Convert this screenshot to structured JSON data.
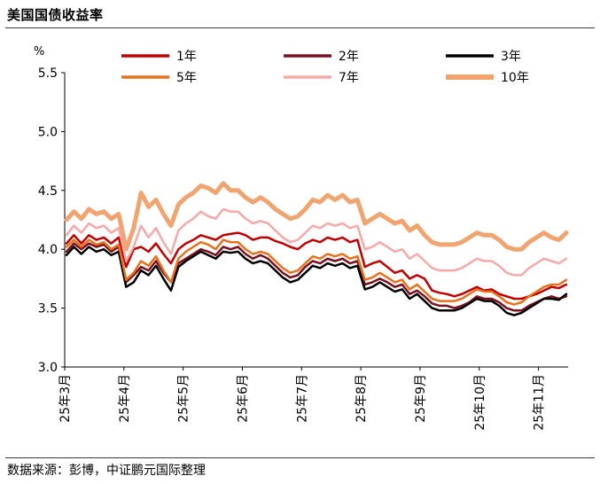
{
  "header": {
    "title": "美国国债收益率"
  },
  "footer": {
    "source": "数据来源：彭博，中证鹏元国际整理"
  },
  "chart_data": {
    "type": "line",
    "title": "美国国债收益率",
    "ylabel": "%",
    "xlabel": "",
    "ylim": [
      3.0,
      5.5
    ],
    "yticks": [
      "3.0",
      "3.5",
      "4.0",
      "4.5",
      "5.0",
      "5.5"
    ],
    "x_tick_labels": [
      "25年3月",
      "25年4月",
      "25年5月",
      "25年6月",
      "25年7月",
      "25年8月",
      "25年9月",
      "25年10月",
      "25年11月"
    ],
    "legend_position": "top",
    "series": [
      {
        "name": "1年",
        "color": "#c00000",
        "width": 2.5,
        "values": [
          4.05,
          4.12,
          4.05,
          4.12,
          4.08,
          4.1,
          4.05,
          4.1,
          3.85,
          4.0,
          4.02,
          3.98,
          4.05,
          3.96,
          3.88,
          4.0,
          4.05,
          4.08,
          4.12,
          4.1,
          4.08,
          4.12,
          4.13,
          4.14,
          4.12,
          4.08,
          4.1,
          4.1,
          4.07,
          4.05,
          4.02,
          4.0,
          4.05,
          4.08,
          4.06,
          4.1,
          4.08,
          4.1,
          4.06,
          4.08,
          3.85,
          3.88,
          3.9,
          3.85,
          3.8,
          3.82,
          3.75,
          3.78,
          3.75,
          3.65,
          3.63,
          3.62,
          3.6,
          3.62,
          3.65,
          3.68,
          3.65,
          3.66,
          3.62,
          3.6,
          3.58,
          3.58,
          3.6,
          3.62,
          3.65,
          3.68,
          3.67,
          3.7
        ]
      },
      {
        "name": "2年",
        "color": "#7b1020",
        "width": 2.5,
        "values": [
          3.98,
          4.05,
          4.0,
          4.05,
          4.02,
          4.04,
          3.98,
          4.02,
          3.72,
          3.78,
          3.85,
          3.82,
          3.9,
          3.8,
          3.72,
          3.88,
          3.92,
          3.96,
          4.0,
          3.98,
          3.95,
          4.02,
          4.0,
          4.02,
          3.96,
          3.92,
          3.95,
          3.92,
          3.86,
          3.8,
          3.76,
          3.78,
          3.85,
          3.9,
          3.88,
          3.92,
          3.9,
          3.92,
          3.88,
          3.9,
          3.7,
          3.72,
          3.75,
          3.72,
          3.68,
          3.7,
          3.62,
          3.65,
          3.6,
          3.54,
          3.52,
          3.52,
          3.5,
          3.52,
          3.55,
          3.6,
          3.58,
          3.58,
          3.55,
          3.5,
          3.48,
          3.48,
          3.52,
          3.55,
          3.58,
          3.6,
          3.58,
          3.6
        ]
      },
      {
        "name": "3年",
        "color": "#000000",
        "width": 2.5,
        "values": [
          3.95,
          4.02,
          3.96,
          4.02,
          3.98,
          4.0,
          3.95,
          3.98,
          3.68,
          3.72,
          3.82,
          3.78,
          3.86,
          3.75,
          3.65,
          3.85,
          3.9,
          3.94,
          3.98,
          3.95,
          3.92,
          3.98,
          3.97,
          3.98,
          3.92,
          3.88,
          3.9,
          3.88,
          3.82,
          3.76,
          3.72,
          3.74,
          3.8,
          3.86,
          3.84,
          3.88,
          3.86,
          3.88,
          3.84,
          3.86,
          3.66,
          3.68,
          3.72,
          3.68,
          3.64,
          3.66,
          3.58,
          3.62,
          3.56,
          3.5,
          3.48,
          3.48,
          3.48,
          3.5,
          3.54,
          3.58,
          3.56,
          3.56,
          3.52,
          3.46,
          3.44,
          3.46,
          3.5,
          3.54,
          3.58,
          3.58,
          3.57,
          3.62
        ]
      },
      {
        "name": "5年",
        "color": "#e8711b",
        "width": 2.5,
        "values": [
          4.02,
          4.08,
          4.02,
          4.08,
          4.04,
          4.06,
          4.0,
          4.04,
          3.74,
          3.8,
          3.9,
          3.86,
          3.94,
          3.82,
          3.72,
          3.92,
          3.98,
          4.02,
          4.06,
          4.04,
          4.0,
          4.08,
          4.06,
          4.06,
          4.0,
          3.96,
          3.98,
          3.96,
          3.9,
          3.84,
          3.8,
          3.82,
          3.88,
          3.94,
          3.92,
          3.96,
          3.94,
          3.96,
          3.92,
          3.94,
          3.74,
          3.76,
          3.8,
          3.76,
          3.72,
          3.74,
          3.66,
          3.7,
          3.64,
          3.58,
          3.56,
          3.56,
          3.56,
          3.58,
          3.62,
          3.66,
          3.64,
          3.64,
          3.6,
          3.55,
          3.53,
          3.55,
          3.6,
          3.64,
          3.68,
          3.7,
          3.7,
          3.74
        ]
      },
      {
        "name": "7年",
        "color": "#f7a8a8",
        "width": 2.5,
        "values": [
          4.12,
          4.2,
          4.14,
          4.22,
          4.18,
          4.2,
          4.14,
          4.18,
          3.9,
          4.02,
          4.2,
          4.1,
          4.18,
          4.06,
          3.96,
          4.16,
          4.22,
          4.26,
          4.32,
          4.28,
          4.26,
          4.34,
          4.32,
          4.32,
          4.26,
          4.22,
          4.24,
          4.22,
          4.16,
          4.1,
          4.06,
          4.08,
          4.14,
          4.2,
          4.18,
          4.22,
          4.2,
          4.22,
          4.18,
          4.2,
          4.0,
          4.02,
          4.06,
          4.02,
          3.98,
          4.0,
          3.92,
          3.96,
          3.9,
          3.84,
          3.82,
          3.82,
          3.82,
          3.84,
          3.88,
          3.92,
          3.9,
          3.9,
          3.86,
          3.8,
          3.78,
          3.78,
          3.84,
          3.88,
          3.92,
          3.9,
          3.88,
          3.92
        ]
      },
      {
        "name": "10年",
        "color": "#f0a470",
        "width": 5,
        "values": [
          4.25,
          4.32,
          4.26,
          4.34,
          4.3,
          4.32,
          4.26,
          4.3,
          4.0,
          4.18,
          4.48,
          4.36,
          4.42,
          4.3,
          4.2,
          4.38,
          4.44,
          4.48,
          4.54,
          4.52,
          4.48,
          4.56,
          4.5,
          4.5,
          4.44,
          4.4,
          4.44,
          4.4,
          4.34,
          4.3,
          4.26,
          4.28,
          4.34,
          4.42,
          4.4,
          4.46,
          4.42,
          4.46,
          4.4,
          4.42,
          4.22,
          4.26,
          4.3,
          4.26,
          4.22,
          4.24,
          4.16,
          4.2,
          4.12,
          4.06,
          4.04,
          4.04,
          4.04,
          4.06,
          4.1,
          4.14,
          4.12,
          4.12,
          4.08,
          4.02,
          4.0,
          4.0,
          4.06,
          4.1,
          4.14,
          4.1,
          4.08,
          4.14
        ]
      }
    ]
  }
}
